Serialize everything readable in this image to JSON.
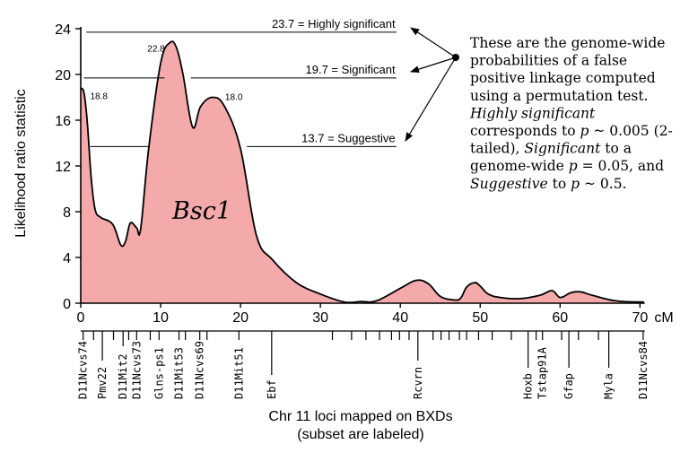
{
  "chart_data": {
    "type": "area",
    "ylabel": "Likelihood ratio statistic",
    "xlabel": "Chr 11 loci mapped on BXDs",
    "xlabel_sub": "(subset are labeled)",
    "x_unit": "cM",
    "ylim": [
      0,
      24
    ],
    "xlim": [
      0,
      70
    ],
    "yticks": [
      0,
      4,
      8,
      12,
      16,
      20,
      24
    ],
    "xticks": [
      0,
      10,
      20,
      30,
      40,
      50,
      60,
      70
    ],
    "fill_color": "#f4a9ab",
    "line_color": "#000000",
    "x": [
      0,
      0.4,
      0.8,
      1.3,
      1.8,
      2.5,
      4,
      5,
      5.6,
      6.2,
      7,
      7.5,
      8.5,
      10,
      11.2,
      12,
      12.8,
      14,
      15,
      16.5,
      18,
      20,
      22,
      24,
      27,
      30,
      33,
      35,
      37,
      40,
      42,
      43.5,
      45,
      46.5,
      47.5,
      48.3,
      49.3,
      50,
      51,
      52.5,
      55,
      57.5,
      59,
      60,
      61.3,
      62.5,
      64,
      67,
      70.5
    ],
    "values": [
      18.8,
      18.4,
      16,
      11,
      8.2,
      7.5,
      6.9,
      5.1,
      5.4,
      7,
      6.6,
      6.5,
      13.5,
      21,
      22.8,
      22.3,
      20,
      15.4,
      17.2,
      18,
      17.2,
      13.5,
      5.9,
      3.8,
      1.8,
      0.8,
      0.1,
      0.15,
      0.2,
      1.3,
      2,
      1.7,
      0.6,
      0.3,
      0.4,
      1.4,
      1.8,
      1.5,
      0.8,
      0.5,
      0.4,
      0.7,
      1.1,
      0.5,
      0.9,
      1.0,
      0.7,
      0.2,
      0.1
    ],
    "peak_labels": [
      {
        "x": 0.5,
        "y": 18.8,
        "text": "18.8"
      },
      {
        "x": 11.2,
        "y": 22.8,
        "text": "22.8"
      },
      {
        "x": 16.5,
        "y": 18.0,
        "text": "18.0"
      }
    ],
    "thresholds": [
      {
        "value": 23.7,
        "label": "23.7 = Highly significant"
      },
      {
        "value": 19.7,
        "label": "19.7 = Significant"
      },
      {
        "value": 13.7,
        "label": "13.7 = Suggestive"
      }
    ],
    "region_label": "Bsc1",
    "loci": [
      {
        "x": 0.3,
        "name": "D11Ncvs74"
      },
      {
        "x": 2.7,
        "name": "Pmv22"
      },
      {
        "x": 5.3,
        "name": "D11Mit2"
      },
      {
        "x": 7.0,
        "name": "D11Ncvs73"
      },
      {
        "x": 9.8,
        "name": "Glns-ps1"
      },
      {
        "x": 12.3,
        "name": "D11Mit53"
      },
      {
        "x": 14.9,
        "name": "D11Ncvs69"
      },
      {
        "x": 19.8,
        "name": "D11Mit51"
      },
      {
        "x": 23.9,
        "name": "Ebf"
      },
      {
        "x": 42.2,
        "name": "Rcvrn"
      },
      {
        "x": 56.0,
        "name": "Hoxb"
      },
      {
        "x": 57.8,
        "name": "Tstap91A"
      },
      {
        "x": 61.1,
        "name": "Gfap"
      },
      {
        "x": 66.1,
        "name": "Myla"
      },
      {
        "x": 70.4,
        "name": "D11Ncvs84"
      }
    ],
    "extra_tick_x": [
      1.6,
      4.1,
      6.0,
      8.7,
      13.1,
      15.8,
      31.5,
      33.9,
      35.7,
      37.4,
      38.9,
      39.9,
      41.1,
      44.1,
      45.1,
      46.1,
      47.4,
      48.3,
      49.8,
      51.5,
      53.9,
      57.0,
      60.2,
      62.3,
      64.8
    ]
  },
  "annotation": {
    "lines": [
      [
        {
          "t": "These are the genome-wide",
          "i": false
        }
      ],
      [
        {
          "t": "probabilities of a false",
          "i": false
        }
      ],
      [
        {
          "t": "positive linkage computed",
          "i": false
        }
      ],
      [
        {
          "t": "using a permutation test.",
          "i": false
        }
      ],
      [
        {
          "t": "Highly significant",
          "i": true
        }
      ],
      [
        {
          "t": "corresponds to ",
          "i": false
        },
        {
          "t": "p",
          "i": true
        },
        {
          "t": " ~ 0.005 (2-",
          "i": false
        }
      ],
      [
        {
          "t": "tailed), ",
          "i": false
        },
        {
          "t": "Significant",
          "i": true
        },
        {
          "t": "  to a",
          "i": false
        }
      ],
      [
        {
          "t": "genome-wide ",
          "i": false
        },
        {
          "t": "p",
          "i": true
        },
        {
          "t": " = 0.05, and",
          "i": false
        }
      ],
      [
        {
          "t": "Suggestive",
          "i": true
        },
        {
          "t": " to ",
          "i": false
        },
        {
          "t": "p",
          "i": true
        },
        {
          "t": " ~ 0.5.",
          "i": false
        }
      ]
    ]
  }
}
